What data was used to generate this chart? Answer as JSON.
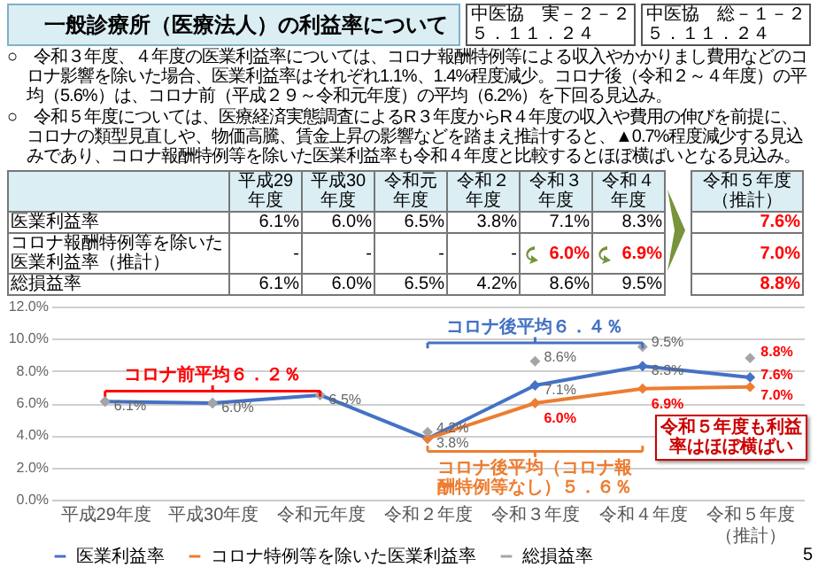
{
  "chart_data": {
    "type": "line",
    "title": "一般診療所（医療法人）の利益率について",
    "categories": [
      "平成29年度",
      "平成30年度",
      "令和元年度",
      "令和２年度",
      "令和３年度",
      "令和４年度",
      "令和５年度（推計）"
    ],
    "series": [
      {
        "name": "医業利益率",
        "color": "#4472c4",
        "values": [
          6.1,
          6.0,
          6.5,
          3.8,
          7.1,
          8.3,
          7.6
        ],
        "value_labels": [
          "6.1%",
          "6.0%",
          "6.5%",
          "3.8%",
          "7.1%",
          "8.3%",
          "7.6%"
        ]
      },
      {
        "name": "コロナ特例等を除いた医業利益率",
        "color": "#ed7d31",
        "values": [
          null,
          null,
          null,
          3.8,
          6.0,
          6.9,
          7.0
        ],
        "value_labels": [
          "-",
          "-",
          "-",
          null,
          "6.0%",
          "6.9%",
          "7.0%"
        ]
      },
      {
        "name": "総損益率",
        "type": "scatter",
        "color": "#a5a5a5",
        "values": [
          6.1,
          6.0,
          6.5,
          4.2,
          8.6,
          9.5,
          8.8
        ],
        "value_labels": [
          null,
          null,
          null,
          "4.2%",
          "8.6%",
          "9.5%",
          "8.8%"
        ]
      }
    ],
    "ylim": [
      0,
      12
    ],
    "yticks": [
      {
        "value": 0,
        "label": "0.0%"
      },
      {
        "value": 2,
        "label": "2.0%"
      },
      {
        "value": 4,
        "label": "4.0%"
      },
      {
        "value": 6,
        "label": "6.0%"
      },
      {
        "value": 8,
        "label": "8.0%"
      },
      {
        "value": 10,
        "label": "10.0%"
      },
      {
        "value": 12,
        "label": "12.0%"
      }
    ],
    "grid": "y",
    "legend": "bottom",
    "marker": "diamond",
    "annotations": [
      "中医協　実－２－２",
      "５．１１．２４",
      "中医協　総－１－２",
      "５．１１．２４",
      "○　令和３年度、４年度の医業利益率については、コロナ報酬特例等による収入やかかりまし費用などのコロナ影響を除いた場合、医業利益率はそれぞれ1.1%、1.4%程度減少。コロナ後（令和２～４年度）の平均（5.6%）は、コロナ前（平成２９～令和元年度）の平均（6.2%）を下回る見込み。",
      "○　令和５年度については、医療経済実態調査によるR３年度からR４年度の収入や費用の伸びを前提に、コロナの類型見直しや、物価高騰、賃金上昇の影響などを踏まえ推計すると、▲0.7%程度減少する見込みであり、コロナ報酬特例等を除いた医業利益率も令和４年度と比較するとほぼ横ばいとなる見込み。",
      "医業利益率",
      "コロナ報酬特例等を除いた医業利益率（推計）",
      "総損益率",
      "令和５年度も利益率はほぼ横ばい",
      "5",
      "コロナ前平均６．２％",
      "コロナ後平均６．４％",
      "コロナ後平均（コロナ報酬特例等なし）５．６％"
    ]
  }
}
